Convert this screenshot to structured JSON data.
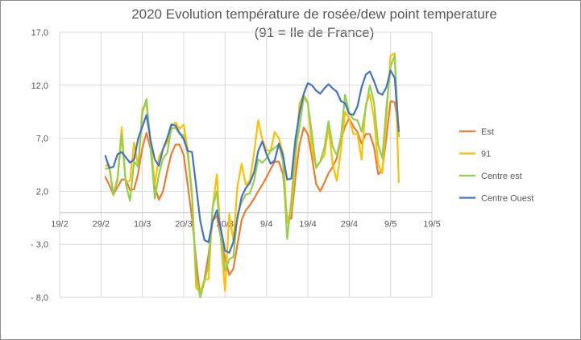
{
  "chart_data": {
    "type": "line",
    "title": "2020 Evolution température de rosée/dew point temperature (91 = Ile de France)",
    "xlabel": "",
    "ylabel": "",
    "x_unit": "days since 29/2/2020",
    "x_start_day": 1,
    "xlim": [
      -10,
      80
    ],
    "ylim": [
      -8,
      17
    ],
    "x_ticks": [
      {
        "day": -10,
        "label": "19/2"
      },
      {
        "day": 0,
        "label": "29/2"
      },
      {
        "day": 10,
        "label": "10/3"
      },
      {
        "day": 20,
        "label": "20/3"
      },
      {
        "day": 30,
        "label": "30/3"
      },
      {
        "day": 40,
        "label": "9/4"
      },
      {
        "day": 50,
        "label": "19/4"
      },
      {
        "day": 60,
        "label": "29/4"
      },
      {
        "day": 70,
        "label": "9/5"
      },
      {
        "day": 80,
        "label": "19/5"
      }
    ],
    "y_ticks": [
      {
        "value": 17,
        "label": "17,0"
      },
      {
        "value": 12,
        "label": "12,0"
      },
      {
        "value": 7,
        "label": "7,0"
      },
      {
        "value": 2,
        "label": "2,0"
      },
      {
        "value": -3,
        "label": "- 3,0"
      },
      {
        "value": -8,
        "label": "- 8,0"
      }
    ],
    "grid": true,
    "legend_position": "right",
    "series": [
      {
        "name": "Est",
        "color": "#ED7D31",
        "values": [
          3.4,
          2.6,
          1.7,
          2.4,
          3.1,
          3.1,
          2.1,
          2.2,
          3.7,
          6.1,
          7.5,
          6.0,
          2.4,
          1.2,
          2.0,
          3.9,
          5.5,
          6.4,
          6.4,
          5.4,
          2.5,
          -0.5,
          -4.5,
          -8.0,
          -6.3,
          -4.0,
          -0.8,
          -0.3,
          -2.5,
          -4.3,
          -5.9,
          -5.3,
          -3.0,
          -0.7,
          0.2,
          0.7,
          1.3,
          2.0,
          2.6,
          3.3,
          4.1,
          4.8,
          4.8,
          3.6,
          -0.5,
          -0.6,
          3.3,
          6.4,
          8.0,
          7.4,
          5.2,
          2.7,
          2.0,
          2.8,
          3.7,
          4.3,
          5.1,
          6.9,
          8.1,
          8.9,
          8.1,
          7.6,
          6.5,
          7.4,
          7.4,
          6.2,
          3.6,
          4.0,
          7.1,
          10.5,
          10.4,
          8.0
        ]
      },
      {
        "name": "91",
        "color": "#FFC000",
        "values": [
          4.4,
          4.5,
          1.6,
          3.3,
          8.0,
          2.8,
          3.0,
          6.6,
          4.3,
          9.8,
          10.2,
          6.7,
          2.6,
          5.2,
          6.0,
          6.6,
          8.1,
          8.5,
          7.9,
          8.3,
          5.8,
          1.8,
          -7.1,
          -7.5,
          -6.3,
          -6.3,
          0.5,
          3.6,
          -2.7,
          -7.4,
          -0.1,
          -2.7,
          2.5,
          4.6,
          2.6,
          3.0,
          5.6,
          8.7,
          6.9,
          5.9,
          5.8,
          7.6,
          7.0,
          5.6,
          -1.0,
          0.3,
          4.8,
          10.3,
          11.1,
          10.4,
          5.9,
          4.3,
          4.8,
          5.4,
          8.1,
          4.6,
          3.0,
          5.8,
          9.5,
          8.9,
          7.4,
          7.4,
          5.0,
          10.2,
          11.1,
          8.9,
          4.6,
          3.7,
          8.9,
          14.8,
          15.0,
          2.8
        ]
      },
      {
        "name": "Centre est",
        "color": "#92D050",
        "values": [
          4.1,
          4.2,
          1.7,
          3.1,
          7.4,
          2.7,
          1.1,
          4.8,
          4.3,
          9.4,
          10.7,
          6.4,
          1.3,
          3.6,
          5.1,
          5.6,
          7.9,
          8.0,
          7.4,
          7.3,
          5.4,
          1.5,
          -6.0,
          -8.0,
          -6.5,
          -5.0,
          0.5,
          2.0,
          -2.5,
          -5.5,
          -4.4,
          -4.2,
          -0.2,
          1.0,
          1.7,
          1.8,
          3.0,
          5.0,
          4.7,
          5.1,
          5.8,
          6.1,
          6.4,
          4.8,
          -2.5,
          1.1,
          5.9,
          8.1,
          10.9,
          10.3,
          7.4,
          4.2,
          4.8,
          6.1,
          8.6,
          6.2,
          5.4,
          7.1,
          11.1,
          9.4,
          8.8,
          8.7,
          7.6,
          9.9,
          12.0,
          10.4,
          6.4,
          5.1,
          9.9,
          13.8,
          14.8,
          7.1
        ]
      },
      {
        "name": "Centre Ouest",
        "color": "#4472C4",
        "values": [
          5.4,
          4.2,
          4.3,
          5.5,
          5.7,
          5.2,
          4.7,
          5.0,
          7.0,
          8.1,
          9.2,
          6.8,
          5.0,
          4.4,
          6.0,
          7.0,
          8.3,
          8.2,
          7.5,
          6.9,
          5.8,
          5.7,
          2.5,
          -0.8,
          -2.6,
          -2.8,
          -0.8,
          0.2,
          -1.6,
          -3.6,
          -3.8,
          -2.8,
          -0.5,
          1.5,
          2.3,
          2.8,
          3.8,
          5.8,
          6.7,
          5.5,
          4.6,
          4.9,
          6.5,
          5.4,
          3.1,
          3.2,
          6.9,
          9.4,
          11.2,
          12.2,
          12.0,
          11.5,
          11.2,
          11.7,
          12.1,
          11.7,
          11.4,
          10.5,
          10.3,
          9.3,
          9.2,
          10.0,
          11.8,
          13.0,
          13.3,
          12.4,
          11.3,
          11.1,
          11.8,
          13.4,
          12.7,
          7.6
        ]
      }
    ]
  }
}
